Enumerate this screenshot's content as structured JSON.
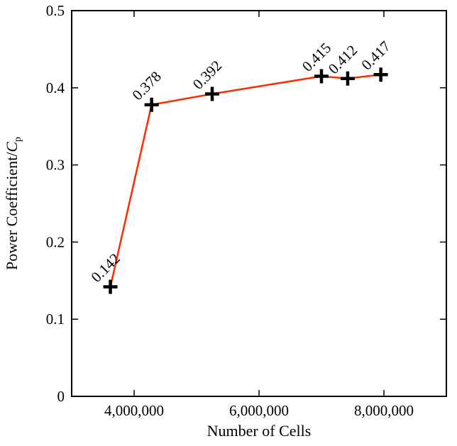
{
  "chart_data": {
    "type": "line",
    "title": "",
    "xlabel": "Number of Cells",
    "ylabel_main": "Power Coefficient/",
    "ylabel_sym": "C",
    "ylabel_sub": "p",
    "xlim": [
      3000000,
      9000000
    ],
    "ylim": [
      0,
      0.5
    ],
    "xticks": [
      {
        "value": 4000000,
        "label": "4,000,000"
      },
      {
        "value": 6000000,
        "label": "6,000,000"
      },
      {
        "value": 8000000,
        "label": "8,000,000"
      }
    ],
    "yticks": [
      {
        "value": 0,
        "label": "0"
      },
      {
        "value": 0.1,
        "label": "0.1"
      },
      {
        "value": 0.2,
        "label": "0.2"
      },
      {
        "value": 0.3,
        "label": "0.3"
      },
      {
        "value": 0.4,
        "label": "0.4"
      },
      {
        "value": 0.5,
        "label": "0.5"
      }
    ],
    "series": [
      {
        "name": "Cp",
        "color": "#ff2a00",
        "marker_color": "#000000",
        "x": [
          3620000,
          4280000,
          5250000,
          7000000,
          7420000,
          7950000
        ],
        "y": [
          0.142,
          0.378,
          0.392,
          0.415,
          0.412,
          0.417
        ],
        "labels": [
          "0.142",
          "0.378",
          "0.392",
          "0.415",
          "0.412",
          "0.417"
        ]
      }
    ],
    "grid": false
  }
}
